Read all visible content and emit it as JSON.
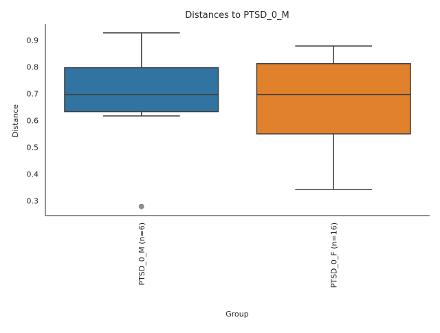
{
  "chart_data": {
    "type": "box",
    "title": "Distances to PTSD_0_M",
    "xlabel": "Group",
    "ylabel": "Distance",
    "ylim": [
      0.245,
      0.96
    ],
    "yticks": [
      0.3,
      0.4,
      0.5,
      0.6,
      0.7,
      0.8,
      0.9
    ],
    "grid": false,
    "categories": [
      "PTSD_0_M (n=6)",
      "PTSD_0_F (n=16)"
    ],
    "boxes": [
      {
        "category": "PTSD_0_M (n=6)",
        "color": "#3274a1",
        "whisker_low": 0.617,
        "q1": 0.633,
        "median": 0.697,
        "q3": 0.797,
        "whisker_high": 0.927,
        "outliers": [
          0.279
        ]
      },
      {
        "category": "PTSD_0_F (n=16)",
        "color": "#e1812c",
        "whisker_low": 0.343,
        "q1": 0.55,
        "median": 0.697,
        "q3": 0.812,
        "whisker_high": 0.878,
        "outliers": []
      }
    ]
  }
}
